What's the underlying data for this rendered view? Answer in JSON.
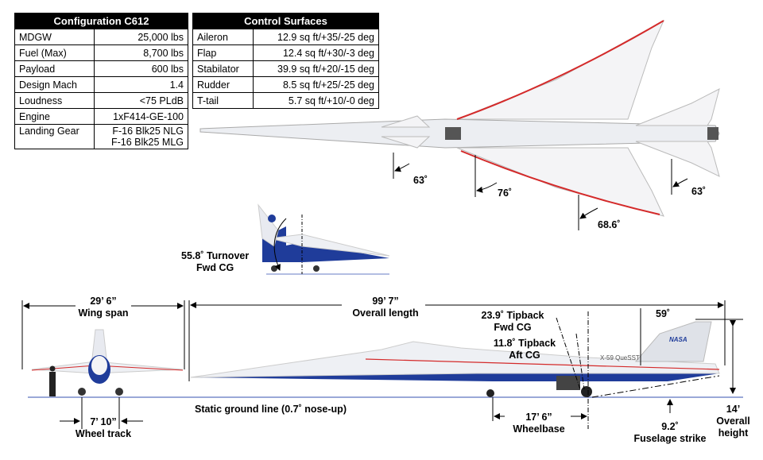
{
  "configuration": {
    "title": "Configuration C612",
    "rows": [
      {
        "label": "MDGW",
        "value": "25,000 lbs"
      },
      {
        "label": "Fuel (Max)",
        "value": "8,700 lbs"
      },
      {
        "label": "Payload",
        "value": "600 lbs"
      },
      {
        "label": "Design Mach",
        "value": "1.4"
      },
      {
        "label": "Loudness",
        "value": "<75 PLdB"
      },
      {
        "label": "Engine",
        "value": "1xF414-GE-100"
      },
      {
        "label": "Landing Gear",
        "value": "F-16 Blk25 NLG",
        "value2": "F-16 Blk25 MLG"
      }
    ]
  },
  "control_surfaces": {
    "title": "Control Surfaces",
    "rows": [
      {
        "label": "Aileron",
        "value": "12.9 sq ft/+35/-25 deg"
      },
      {
        "label": "Flap",
        "value": "12.4 sq ft/+30/-3 deg"
      },
      {
        "label": "Stabilator",
        "value": "39.9 sq ft/+20/-15 deg"
      },
      {
        "label": "Rudder",
        "value": "8.5 sq ft/+25/-25 deg"
      },
      {
        "label": "T-tail",
        "value": "5.7 sq ft/+10/-0 deg"
      }
    ]
  },
  "top_view": {
    "angle_canard": "63˚",
    "angle_wing_inner": "76˚",
    "angle_wing_outer": "68.6˚",
    "angle_tail": "63˚"
  },
  "turnover": {
    "line1": "55.8˚ Turnover",
    "line2": "Fwd CG"
  },
  "front_view": {
    "span_value": "29’ 6”",
    "span_label": "Wing span",
    "track_value": "7’ 10”",
    "track_label": "Wheel track"
  },
  "side_view": {
    "length_value": "99’ 7”",
    "length_label": "Overall length",
    "tipback_fwd_1": "23.9˚ Tipback",
    "tipback_fwd_2": "Fwd CG",
    "tipback_aft_1": "11.8˚ Tipback",
    "tipback_aft_2": "Aft CG",
    "tail_angle": "59˚",
    "ground_line": "Static ground line (0.7˚ nose-up)",
    "wheelbase_value": "17’ 6”",
    "wheelbase_label": "Wheelbase",
    "strike_value": "9.2˚",
    "strike_label": "Fuselage strike",
    "height_value": "14’",
    "height_label1": "Overall",
    "height_label2": "height",
    "aircraft_marking": "X-59 QueSST",
    "logo": "NASA"
  },
  "colors": {
    "blue": "#1f3c9a",
    "red": "#d42a2a",
    "ground": "#9aa8d8"
  }
}
